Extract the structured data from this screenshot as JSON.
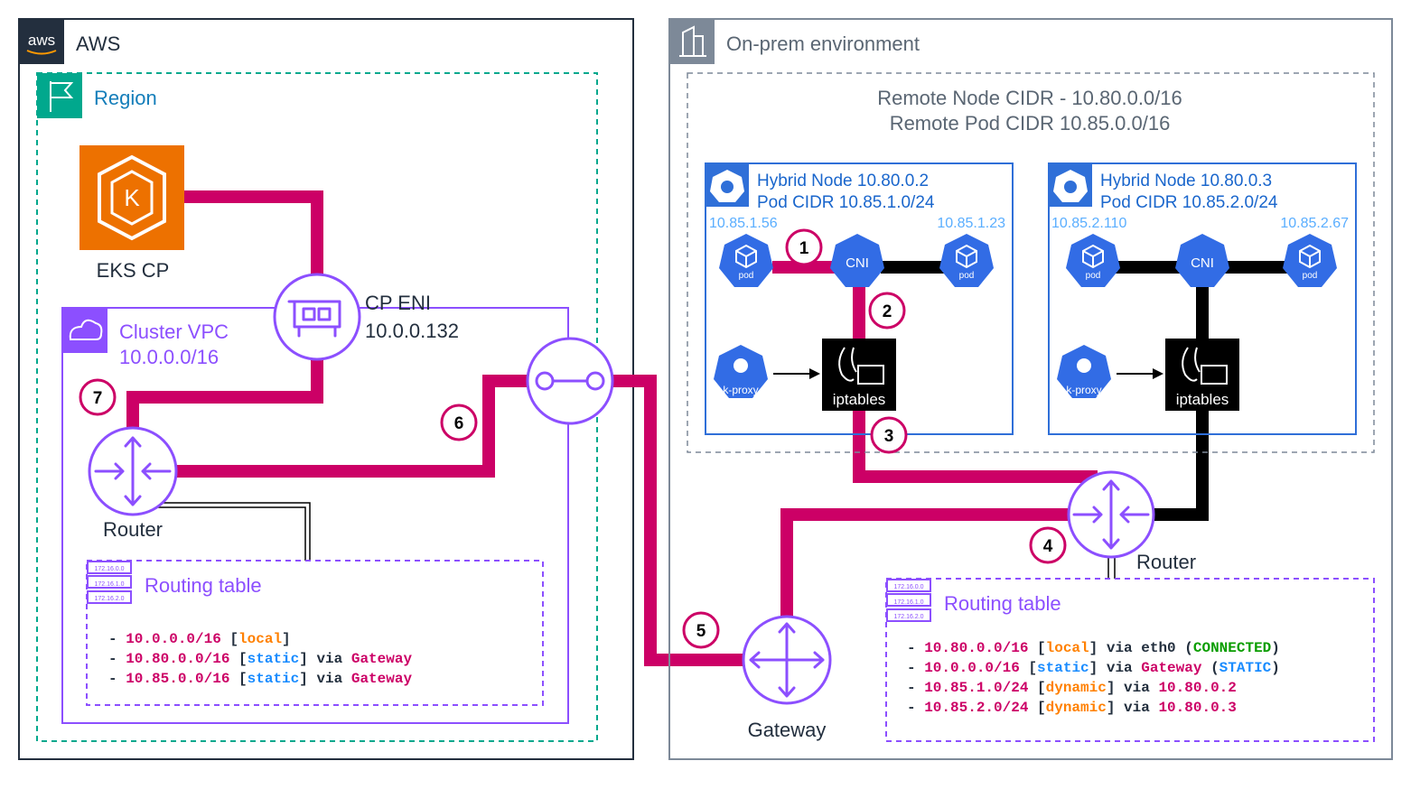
{
  "colors": {
    "path": "#CC0066",
    "purple": "#8C4FFF",
    "teal": "#01A88D",
    "k8s_blue": "#326CE5",
    "aws_orange": "#ED7100",
    "onprem_gray": "#7D8998",
    "plain": "#232F3E",
    "cidr": "#CC0066",
    "local": "#FF8000",
    "static": "#1A8CFF",
    "dynamic": "#FF8000",
    "gateway": "#CC0066",
    "ip": "#CC0066",
    "connected": "#0A9D00"
  },
  "aws": {
    "logo": "aws",
    "title": "AWS"
  },
  "region": {
    "title": "Region"
  },
  "eks": {
    "label": "EKS CP",
    "logo_letter": "K"
  },
  "vpc": {
    "title": "Cluster VPC",
    "cidr": "10.0.0.0/16"
  },
  "eni": {
    "label": "CP ENI",
    "ip": "10.0.0.132"
  },
  "aws_router": {
    "label": "Router"
  },
  "onprem": {
    "title": "On-prem environment",
    "remote_node_cidr": "Remote Node CIDR - 10.80.0.0/16",
    "remote_pod_cidr": "Remote Pod CIDR 10.85.0.0/16",
    "router_label": "Router",
    "gateway_label": "Gateway"
  },
  "nodes": [
    {
      "title": "Hybrid Node 10.80.0.2",
      "pod_cidr": "Pod CIDR 10.85.1.0/24",
      "pod_ip_left": "10.85.1.56",
      "pod_ip_right": "10.85.1.23",
      "pod_label": "pod",
      "cni_label": "CNI",
      "kproxy_label": "k-proxy",
      "iptables_label": "iptables"
    },
    {
      "title": "Hybrid Node 10.80.0.3",
      "pod_cidr": "Pod CIDR 10.85.2.0/24",
      "pod_ip_left": "10.85.2.110",
      "pod_ip_right": "10.85.2.67",
      "pod_label": "pod",
      "cni_label": "CNI",
      "kproxy_label": "k-proxy",
      "iptables_label": "iptables"
    }
  ],
  "route_table_icon": [
    "172.16.0.0",
    "172.16.1.0",
    "172.16.2.0"
  ],
  "steps": [
    "1",
    "2",
    "3",
    "4",
    "5",
    "6",
    "7"
  ],
  "routing_table_aws": {
    "title": "Routing table",
    "entries": [
      [
        {
          "t": "- ",
          "c": "plain"
        },
        {
          "t": "10.0.0.0/16",
          "c": "cidr"
        },
        {
          "t": " [",
          "c": "plain"
        },
        {
          "t": "local",
          "c": "local"
        },
        {
          "t": "]",
          "c": "plain"
        }
      ],
      [
        {
          "t": "- ",
          "c": "plain"
        },
        {
          "t": "10.80.0.0/16",
          "c": "cidr"
        },
        {
          "t": " [",
          "c": "plain"
        },
        {
          "t": "static",
          "c": "static"
        },
        {
          "t": "] via ",
          "c": "plain"
        },
        {
          "t": "Gateway",
          "c": "gateway"
        }
      ],
      [
        {
          "t": "- ",
          "c": "plain"
        },
        {
          "t": "10.85.0.0/16",
          "c": "cidr"
        },
        {
          "t": " [",
          "c": "plain"
        },
        {
          "t": "static",
          "c": "static"
        },
        {
          "t": "] via ",
          "c": "plain"
        },
        {
          "t": "Gateway",
          "c": "gateway"
        }
      ]
    ]
  },
  "routing_table_onprem": {
    "title": "Routing table",
    "entries": [
      [
        {
          "t": "- ",
          "c": "plain"
        },
        {
          "t": "10.80.0.0/16",
          "c": "cidr"
        },
        {
          "t": " [",
          "c": "plain"
        },
        {
          "t": "local",
          "c": "local"
        },
        {
          "t": "] via eth0 (",
          "c": "plain"
        },
        {
          "t": "CONNECTED",
          "c": "connected"
        },
        {
          "t": ")",
          "c": "plain"
        }
      ],
      [
        {
          "t": "- ",
          "c": "plain"
        },
        {
          "t": "10.0.0.0/16",
          "c": "cidr"
        },
        {
          "t": " [",
          "c": "plain"
        },
        {
          "t": "static",
          "c": "static"
        },
        {
          "t": "] via ",
          "c": "plain"
        },
        {
          "t": "Gateway",
          "c": "gateway"
        },
        {
          "t": " (",
          "c": "plain"
        },
        {
          "t": "STATIC",
          "c": "static"
        },
        {
          "t": ")",
          "c": "plain"
        }
      ],
      [
        {
          "t": "- ",
          "c": "plain"
        },
        {
          "t": "10.85.1.0/24",
          "c": "cidr"
        },
        {
          "t": " [",
          "c": "plain"
        },
        {
          "t": "dynamic",
          "c": "dynamic"
        },
        {
          "t": "] via ",
          "c": "plain"
        },
        {
          "t": "10.80.0.2",
          "c": "ip"
        }
      ],
      [
        {
          "t": "- ",
          "c": "plain"
        },
        {
          "t": "10.85.2.0/24",
          "c": "cidr"
        },
        {
          "t": " [",
          "c": "plain"
        },
        {
          "t": "dynamic",
          "c": "dynamic"
        },
        {
          "t": "] via ",
          "c": "plain"
        },
        {
          "t": "10.80.0.3",
          "c": "ip"
        }
      ]
    ]
  }
}
